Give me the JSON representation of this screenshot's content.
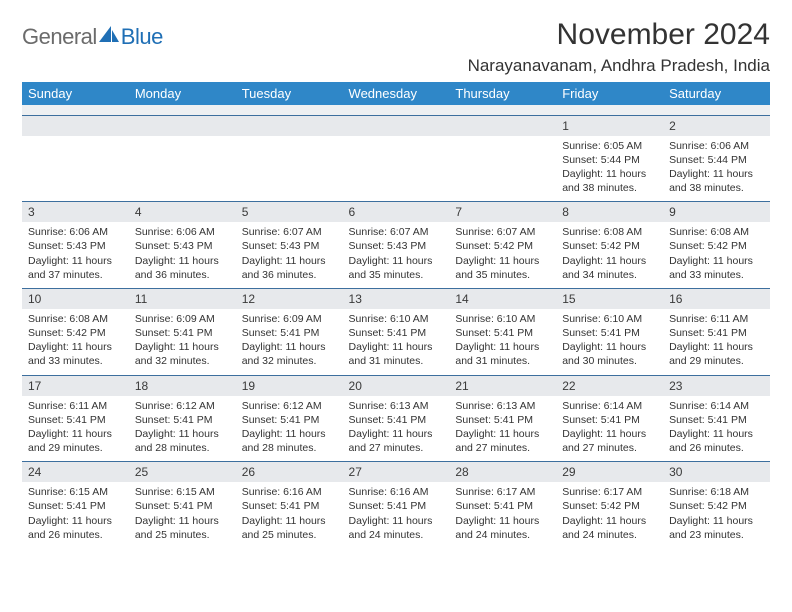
{
  "logo": {
    "text1": "General",
    "text2": "Blue",
    "sail_color": "#1f6fb5"
  },
  "header": {
    "month_title": "November 2024",
    "location": "Narayanavanam, Andhra Pradesh, India"
  },
  "colors": {
    "header_bg": "#2f87c8",
    "header_fg": "#ffffff",
    "band_bg": "#e7e9ec",
    "rule": "#3d6f9e",
    "text": "#333333"
  },
  "dow": [
    "Sunday",
    "Monday",
    "Tuesday",
    "Wednesday",
    "Thursday",
    "Friday",
    "Saturday"
  ],
  "weeks": [
    [
      {
        "blank": true
      },
      {
        "blank": true
      },
      {
        "blank": true
      },
      {
        "blank": true
      },
      {
        "blank": true
      },
      {
        "n": "1",
        "sr": "Sunrise: 6:05 AM",
        "ss": "Sunset: 5:44 PM",
        "d1": "Daylight: 11 hours",
        "d2": "and 38 minutes."
      },
      {
        "n": "2",
        "sr": "Sunrise: 6:06 AM",
        "ss": "Sunset: 5:44 PM",
        "d1": "Daylight: 11 hours",
        "d2": "and 38 minutes."
      }
    ],
    [
      {
        "n": "3",
        "sr": "Sunrise: 6:06 AM",
        "ss": "Sunset: 5:43 PM",
        "d1": "Daylight: 11 hours",
        "d2": "and 37 minutes."
      },
      {
        "n": "4",
        "sr": "Sunrise: 6:06 AM",
        "ss": "Sunset: 5:43 PM",
        "d1": "Daylight: 11 hours",
        "d2": "and 36 minutes."
      },
      {
        "n": "5",
        "sr": "Sunrise: 6:07 AM",
        "ss": "Sunset: 5:43 PM",
        "d1": "Daylight: 11 hours",
        "d2": "and 36 minutes."
      },
      {
        "n": "6",
        "sr": "Sunrise: 6:07 AM",
        "ss": "Sunset: 5:43 PM",
        "d1": "Daylight: 11 hours",
        "d2": "and 35 minutes."
      },
      {
        "n": "7",
        "sr": "Sunrise: 6:07 AM",
        "ss": "Sunset: 5:42 PM",
        "d1": "Daylight: 11 hours",
        "d2": "and 35 minutes."
      },
      {
        "n": "8",
        "sr": "Sunrise: 6:08 AM",
        "ss": "Sunset: 5:42 PM",
        "d1": "Daylight: 11 hours",
        "d2": "and 34 minutes."
      },
      {
        "n": "9",
        "sr": "Sunrise: 6:08 AM",
        "ss": "Sunset: 5:42 PM",
        "d1": "Daylight: 11 hours",
        "d2": "and 33 minutes."
      }
    ],
    [
      {
        "n": "10",
        "sr": "Sunrise: 6:08 AM",
        "ss": "Sunset: 5:42 PM",
        "d1": "Daylight: 11 hours",
        "d2": "and 33 minutes."
      },
      {
        "n": "11",
        "sr": "Sunrise: 6:09 AM",
        "ss": "Sunset: 5:41 PM",
        "d1": "Daylight: 11 hours",
        "d2": "and 32 minutes."
      },
      {
        "n": "12",
        "sr": "Sunrise: 6:09 AM",
        "ss": "Sunset: 5:41 PM",
        "d1": "Daylight: 11 hours",
        "d2": "and 32 minutes."
      },
      {
        "n": "13",
        "sr": "Sunrise: 6:10 AM",
        "ss": "Sunset: 5:41 PM",
        "d1": "Daylight: 11 hours",
        "d2": "and 31 minutes."
      },
      {
        "n": "14",
        "sr": "Sunrise: 6:10 AM",
        "ss": "Sunset: 5:41 PM",
        "d1": "Daylight: 11 hours",
        "d2": "and 31 minutes."
      },
      {
        "n": "15",
        "sr": "Sunrise: 6:10 AM",
        "ss": "Sunset: 5:41 PM",
        "d1": "Daylight: 11 hours",
        "d2": "and 30 minutes."
      },
      {
        "n": "16",
        "sr": "Sunrise: 6:11 AM",
        "ss": "Sunset: 5:41 PM",
        "d1": "Daylight: 11 hours",
        "d2": "and 29 minutes."
      }
    ],
    [
      {
        "n": "17",
        "sr": "Sunrise: 6:11 AM",
        "ss": "Sunset: 5:41 PM",
        "d1": "Daylight: 11 hours",
        "d2": "and 29 minutes."
      },
      {
        "n": "18",
        "sr": "Sunrise: 6:12 AM",
        "ss": "Sunset: 5:41 PM",
        "d1": "Daylight: 11 hours",
        "d2": "and 28 minutes."
      },
      {
        "n": "19",
        "sr": "Sunrise: 6:12 AM",
        "ss": "Sunset: 5:41 PM",
        "d1": "Daylight: 11 hours",
        "d2": "and 28 minutes."
      },
      {
        "n": "20",
        "sr": "Sunrise: 6:13 AM",
        "ss": "Sunset: 5:41 PM",
        "d1": "Daylight: 11 hours",
        "d2": "and 27 minutes."
      },
      {
        "n": "21",
        "sr": "Sunrise: 6:13 AM",
        "ss": "Sunset: 5:41 PM",
        "d1": "Daylight: 11 hours",
        "d2": "and 27 minutes."
      },
      {
        "n": "22",
        "sr": "Sunrise: 6:14 AM",
        "ss": "Sunset: 5:41 PM",
        "d1": "Daylight: 11 hours",
        "d2": "and 27 minutes."
      },
      {
        "n": "23",
        "sr": "Sunrise: 6:14 AM",
        "ss": "Sunset: 5:41 PM",
        "d1": "Daylight: 11 hours",
        "d2": "and 26 minutes."
      }
    ],
    [
      {
        "n": "24",
        "sr": "Sunrise: 6:15 AM",
        "ss": "Sunset: 5:41 PM",
        "d1": "Daylight: 11 hours",
        "d2": "and 26 minutes."
      },
      {
        "n": "25",
        "sr": "Sunrise: 6:15 AM",
        "ss": "Sunset: 5:41 PM",
        "d1": "Daylight: 11 hours",
        "d2": "and 25 minutes."
      },
      {
        "n": "26",
        "sr": "Sunrise: 6:16 AM",
        "ss": "Sunset: 5:41 PM",
        "d1": "Daylight: 11 hours",
        "d2": "and 25 minutes."
      },
      {
        "n": "27",
        "sr": "Sunrise: 6:16 AM",
        "ss": "Sunset: 5:41 PM",
        "d1": "Daylight: 11 hours",
        "d2": "and 24 minutes."
      },
      {
        "n": "28",
        "sr": "Sunrise: 6:17 AM",
        "ss": "Sunset: 5:41 PM",
        "d1": "Daylight: 11 hours",
        "d2": "and 24 minutes."
      },
      {
        "n": "29",
        "sr": "Sunrise: 6:17 AM",
        "ss": "Sunset: 5:42 PM",
        "d1": "Daylight: 11 hours",
        "d2": "and 24 minutes."
      },
      {
        "n": "30",
        "sr": "Sunrise: 6:18 AM",
        "ss": "Sunset: 5:42 PM",
        "d1": "Daylight: 11 hours",
        "d2": "and 23 minutes."
      }
    ]
  ]
}
